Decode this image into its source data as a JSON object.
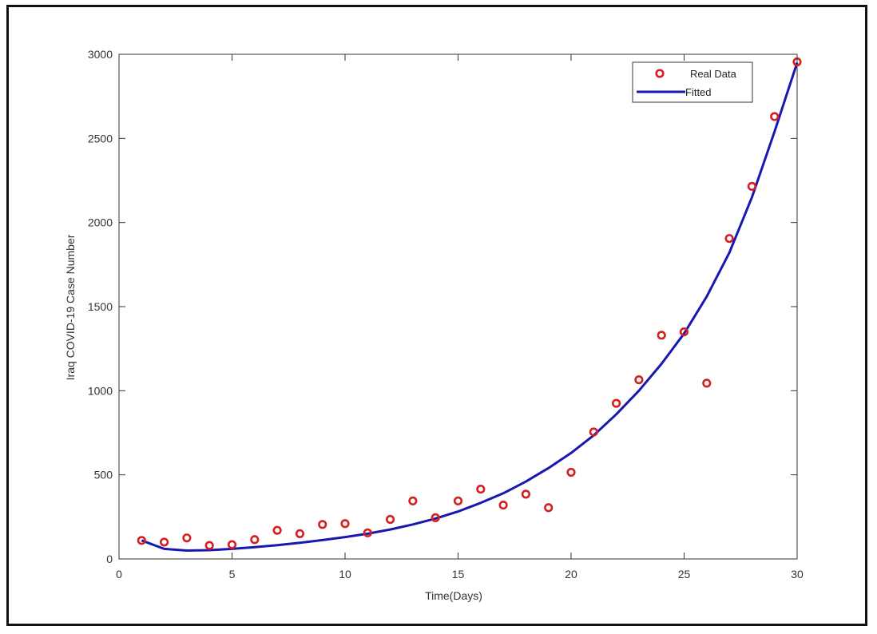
{
  "chart_data": {
    "type": "scatter+line",
    "xlabel": "Time(Days)",
    "ylabel": "Iraq COVID-19 Case Number",
    "xlim": [
      0,
      30
    ],
    "ylim": [
      0,
      3000
    ],
    "xticks": [
      0,
      5,
      10,
      15,
      20,
      25,
      30
    ],
    "yticks": [
      0,
      500,
      1000,
      1500,
      2000,
      2500,
      3000
    ],
    "legend_position": "top-right",
    "series": [
      {
        "name": "Real Data",
        "kind": "markers",
        "color": "#d42020",
        "x": [
          1,
          2,
          3,
          4,
          5,
          6,
          7,
          8,
          9,
          10,
          11,
          12,
          13,
          14,
          15,
          16,
          17,
          18,
          19,
          20,
          21,
          22,
          23,
          24,
          25,
          26,
          27,
          28,
          29,
          30
        ],
        "y": [
          110,
          100,
          125,
          80,
          85,
          115,
          170,
          150,
          205,
          210,
          155,
          235,
          345,
          245,
          345,
          415,
          320,
          385,
          305,
          515,
          755,
          925,
          1065,
          1330,
          1350,
          1045,
          1905,
          2215,
          2630,
          2955
        ]
      },
      {
        "name": "Fitted",
        "kind": "line",
        "color": "#1818b0",
        "x": [
          1,
          2,
          3,
          4,
          5,
          6,
          7,
          8,
          9,
          10,
          11,
          12,
          13,
          14,
          15,
          16,
          17,
          18,
          19,
          20,
          21,
          22,
          23,
          24,
          25,
          26,
          27,
          28,
          29,
          30
        ],
        "y": [
          110,
          60,
          50,
          52,
          60,
          70,
          82,
          96,
          112,
          130,
          150,
          175,
          205,
          240,
          282,
          333,
          390,
          460,
          540,
          630,
          735,
          860,
          1000,
          1160,
          1340,
          1560,
          1820,
          2150,
          2540,
          2950
        ]
      }
    ]
  }
}
